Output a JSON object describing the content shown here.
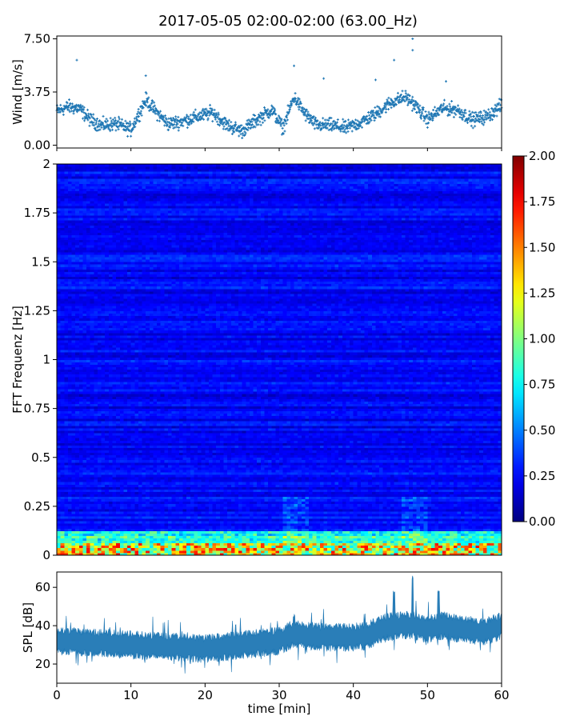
{
  "figure": {
    "title": "2017-05-05 02:00-02:00 (63.00_Hz)"
  },
  "chart_data": [
    {
      "type": "scatter",
      "name_of_panel": "wind",
      "ylabel": "Wind [m/s]",
      "xlim": [
        0,
        60
      ],
      "ylim": [
        -0.2,
        7.7
      ],
      "yticks": [
        0.0,
        3.75,
        7.5
      ],
      "ytick_labels": [
        "0.00",
        "3.75",
        "7.50"
      ],
      "marker": "+",
      "color": "#1f77b4",
      "grid": false,
      "baseline_points": [
        {
          "x": 0,
          "y": 2.4
        },
        {
          "x": 1.5,
          "y": 2.7
        },
        {
          "x": 3,
          "y": 2.6
        },
        {
          "x": 4.5,
          "y": 1.8
        },
        {
          "x": 6,
          "y": 1.4
        },
        {
          "x": 8,
          "y": 1.5
        },
        {
          "x": 10,
          "y": 1.1
        },
        {
          "x": 12,
          "y": 3.2
        },
        {
          "x": 13.5,
          "y": 2.3
        },
        {
          "x": 15,
          "y": 1.5
        },
        {
          "x": 17,
          "y": 1.7
        },
        {
          "x": 19,
          "y": 2.0
        },
        {
          "x": 21,
          "y": 2.3
        },
        {
          "x": 23,
          "y": 1.4
        },
        {
          "x": 25,
          "y": 1.0
        },
        {
          "x": 27,
          "y": 1.8
        },
        {
          "x": 29,
          "y": 2.5
        },
        {
          "x": 30.5,
          "y": 1.2
        },
        {
          "x": 32,
          "y": 3.4
        },
        {
          "x": 33.5,
          "y": 2.2
        },
        {
          "x": 35,
          "y": 1.4
        },
        {
          "x": 37,
          "y": 1.4
        },
        {
          "x": 39,
          "y": 1.2
        },
        {
          "x": 41,
          "y": 1.6
        },
        {
          "x": 43,
          "y": 2.2
        },
        {
          "x": 45,
          "y": 3.0
        },
        {
          "x": 47,
          "y": 3.4
        },
        {
          "x": 48,
          "y": 3.0
        },
        {
          "x": 50,
          "y": 1.8
        },
        {
          "x": 52,
          "y": 2.6
        },
        {
          "x": 54,
          "y": 2.5
        },
        {
          "x": 56,
          "y": 1.8
        },
        {
          "x": 58,
          "y": 2.0
        },
        {
          "x": 60,
          "y": 2.8
        }
      ],
      "peaks": [
        {
          "x": 2.7,
          "y": 6.0
        },
        {
          "x": 12,
          "y": 4.9
        },
        {
          "x": 32,
          "y": 5.6
        },
        {
          "x": 36,
          "y": 4.7
        },
        {
          "x": 43,
          "y": 4.6
        },
        {
          "x": 45.5,
          "y": 6.0
        },
        {
          "x": 48,
          "y": 7.5
        },
        {
          "x": 48,
          "y": 6.7
        },
        {
          "x": 52.5,
          "y": 4.5
        }
      ]
    },
    {
      "type": "heatmap",
      "name_of_panel": "spectrogram",
      "ylabel": "FFT Frequenz [Hz]",
      "xlim": [
        0,
        60
      ],
      "ylim": [
        0,
        2
      ],
      "yticks": [
        0,
        0.25,
        0.5,
        0.75,
        1,
        1.25,
        1.5,
        1.75,
        2
      ],
      "ytick_labels": [
        "0",
        "0.25",
        "0.5",
        "0.75",
        "1",
        "1.25",
        "1.5",
        "1.75",
        "2"
      ],
      "colormap": "jet",
      "colorbar": {
        "range": [
          0,
          2
        ],
        "ticks": [
          "0.00",
          "0.25",
          "0.50",
          "0.75",
          "1.00",
          "1.25",
          "1.50",
          "1.75",
          "2.00"
        ]
      },
      "n_time_bins": 120,
      "n_freq_bins": 160,
      "typical_value": 0.25,
      "low_freq_band_value": 1.6
    },
    {
      "type": "area",
      "name_of_panel": "spl",
      "ylabel": "SPL [dB]",
      "xlabel": "time [min]",
      "xlim": [
        0,
        60
      ],
      "ylim": [
        10,
        68
      ],
      "xticks": [
        0,
        10,
        20,
        30,
        40,
        50,
        60
      ],
      "xtick_labels": [
        "0",
        "10",
        "20",
        "30",
        "40",
        "50",
        "60"
      ],
      "yticks": [
        20,
        40,
        60
      ],
      "ytick_labels": [
        "20",
        "40",
        "60"
      ],
      "color": "#1f77b4",
      "grid": false,
      "center_curve": [
        {
          "x": 0,
          "y": 32
        },
        {
          "x": 5,
          "y": 31
        },
        {
          "x": 10,
          "y": 30
        },
        {
          "x": 15,
          "y": 29
        },
        {
          "x": 20,
          "y": 28
        },
        {
          "x": 25,
          "y": 30
        },
        {
          "x": 30,
          "y": 32
        },
        {
          "x": 32,
          "y": 36
        },
        {
          "x": 35,
          "y": 34
        },
        {
          "x": 40,
          "y": 34
        },
        {
          "x": 42,
          "y": 35
        },
        {
          "x": 44,
          "y": 39
        },
        {
          "x": 46,
          "y": 40
        },
        {
          "x": 48,
          "y": 40
        },
        {
          "x": 50,
          "y": 38
        },
        {
          "x": 52,
          "y": 40
        },
        {
          "x": 55,
          "y": 38
        },
        {
          "x": 58,
          "y": 37
        },
        {
          "x": 60,
          "y": 40
        }
      ],
      "spread": 5,
      "spikes": [
        {
          "x": 32,
          "y": 46
        },
        {
          "x": 45.5,
          "y": 58
        },
        {
          "x": 48,
          "y": 66
        },
        {
          "x": 51.5,
          "y": 59
        }
      ]
    }
  ]
}
